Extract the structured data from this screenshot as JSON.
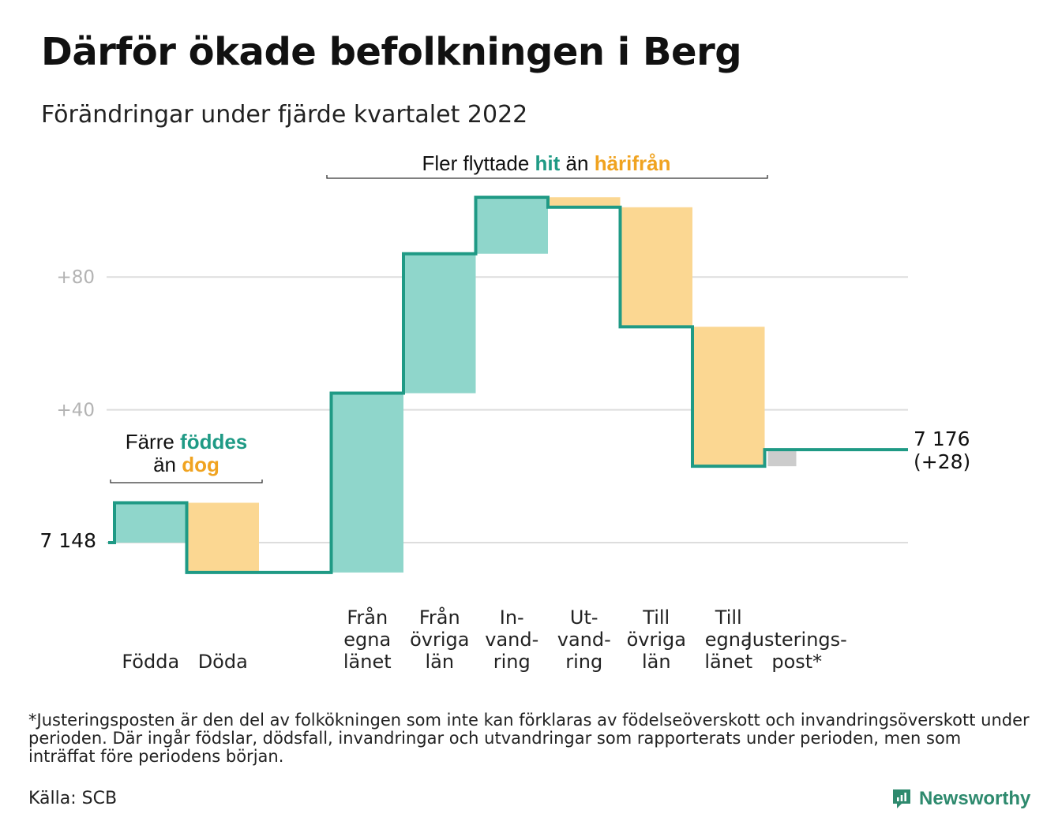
{
  "title": "Därför ökade befolkningen i Berg",
  "subtitle": "Förändringar under fjärde kvartalet 2022",
  "colors": {
    "line": "#1f9a85",
    "increase": "#8fd6cb",
    "decrease": "#fbd792",
    "adjustment": "#cccccc",
    "grid": "#dddddd",
    "hit": "#1f9a85",
    "harifran": "#f0a320"
  },
  "chart_data": {
    "type": "waterfall",
    "start_value": 7148,
    "start_label": "7 148",
    "end_label_value": "7 176",
    "end_label_change": "(+28)",
    "yticks": [
      {
        "value": 40,
        "label": "+40"
      },
      {
        "value": 80,
        "label": "+80"
      }
    ],
    "ylim": [
      -12,
      104
    ],
    "grid": true,
    "steps": [
      {
        "label_lines": [
          "Födda"
        ],
        "change": 12,
        "kind": "increase"
      },
      {
        "label_lines": [
          "Döda"
        ],
        "change": -21,
        "kind": "decrease"
      },
      {
        "label_lines": [],
        "change": 0,
        "kind": "gap"
      },
      {
        "label_lines": [
          "Från",
          "egna",
          "länet"
        ],
        "change": 54,
        "kind": "increase"
      },
      {
        "label_lines": [
          "Från",
          "övriga",
          "län"
        ],
        "change": 42,
        "kind": "increase"
      },
      {
        "label_lines": [
          "In-",
          "vand-",
          "ring"
        ],
        "change": 17,
        "kind": "increase"
      },
      {
        "label_lines": [
          "Ut-",
          "vand-",
          "ring"
        ],
        "change": -3,
        "kind": "decrease"
      },
      {
        "label_lines": [
          "Till",
          "övriga",
          "län"
        ],
        "change": -36,
        "kind": "decrease"
      },
      {
        "label_lines": [
          "Till",
          "egna",
          "länet"
        ],
        "change": -42,
        "kind": "decrease"
      },
      {
        "label_lines": [
          "Justerings-",
          "post*"
        ],
        "change": 5,
        "kind": "adjustment"
      }
    ],
    "annotations": [
      {
        "id": "births",
        "parts": [
          {
            "line": 0,
            "text": "Färre ",
            "style": "plain"
          },
          {
            "line": 0,
            "text": "föddes",
            "style": "hit"
          },
          {
            "line": 1,
            "text": "än ",
            "style": "plain"
          },
          {
            "line": 1,
            "text": "dog",
            "style": "harifran"
          }
        ]
      },
      {
        "id": "migration",
        "parts": [
          {
            "line": 0,
            "text": "Fler flyttade ",
            "style": "plain"
          },
          {
            "line": 0,
            "text": "hit",
            "style": "hit"
          },
          {
            "line": 0,
            "text": " än ",
            "style": "plain"
          },
          {
            "line": 0,
            "text": "härifrån",
            "style": "harifran"
          }
        ]
      }
    ]
  },
  "footnote": "*Justeringsposten är den del av folkökningen som inte kan förklaras av födelseöverskott och invandringsöverskott under perioden. Där ingår födslar, dödsfall, invandringar och utvandringar som rapporterats under perioden, men som inträffat före periodens början.",
  "source": "Källa: SCB",
  "brand": {
    "name": "Newsworthy",
    "icon": "newsworthy-logo-icon"
  }
}
